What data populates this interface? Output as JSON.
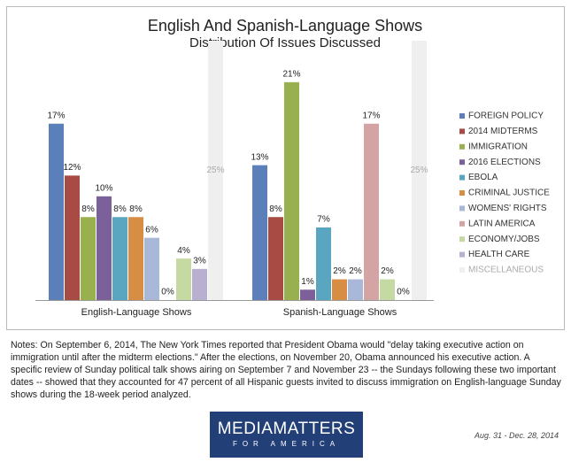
{
  "chart_data": {
    "type": "bar",
    "title": "English And Spanish-Language Shows",
    "subtitle": "Distribution Of Issues Discussed",
    "categories": [
      "English-Language Shows",
      "Spanish-Language Shows"
    ],
    "ylim": [
      0,
      25
    ],
    "series": [
      {
        "name": "FOREIGN POLICY",
        "color": "#5b7fb8",
        "values": [
          17,
          13
        ],
        "value_labels": [
          "17%",
          "13%"
        ]
      },
      {
        "name": "2014 MIDTERMS",
        "color": "#a84b45",
        "values": [
          12,
          8
        ],
        "value_labels": [
          "12%",
          "8%"
        ]
      },
      {
        "name": "IMMIGRATION",
        "color": "#98b04e",
        "values": [
          8,
          21
        ],
        "value_labels": [
          "8%",
          "21%"
        ]
      },
      {
        "name": "2016 ELECTIONS",
        "color": "#7b609a",
        "values": [
          10,
          1
        ],
        "value_labels": [
          "10%",
          "1%"
        ]
      },
      {
        "name": "EBOLA",
        "color": "#5aa5c0",
        "values": [
          8,
          7
        ],
        "value_labels": [
          "8%",
          "7%"
        ]
      },
      {
        "name": "CRIMINAL JUSTICE",
        "color": "#d88d45",
        "values": [
          8,
          2
        ],
        "value_labels": [
          "8%",
          "2%"
        ]
      },
      {
        "name": "WOMENS' RIGHTS",
        "color": "#a9b8d8",
        "values": [
          6,
          2
        ],
        "value_labels": [
          "6%",
          "2%"
        ]
      },
      {
        "name": "LATIN AMERICA",
        "color": "#d4a3a3",
        "values": [
          0,
          17
        ],
        "value_labels": [
          "0%",
          "17%"
        ]
      },
      {
        "name": "ECONOMY/JOBS",
        "color": "#c5d9a3",
        "values": [
          4,
          2
        ],
        "value_labels": [
          "4%",
          "2%"
        ]
      },
      {
        "name": "HEALTH CARE",
        "color": "#b8afd1",
        "values": [
          3,
          0
        ],
        "value_labels": [
          "3%",
          "0%"
        ]
      },
      {
        "name": "MISCELLANEOUS",
        "color": "#efefef",
        "values": [
          25,
          25
        ],
        "value_labels": [
          "25%",
          "25%"
        ]
      }
    ]
  },
  "notes": "Notes: On September 6, 2014, The New York Times reported that President Obama would \"delay taking executive action on immigration until after the midterm elections.\" After the elections, on November 20, Obama announced his executive action. A specific review of Sunday political talk shows airing on September 7 and November 23 -- the Sundays following these two important dates -- showed that they accounted for 47 percent of all Hispanic guests invited to discuss immigration on English-language Sunday shows during the 18-week period analyzed.",
  "date_range": "Aug. 31 - Dec. 28, 2014",
  "logo": {
    "name": "MEDIAMATTERS",
    "tagline": "FOR AMERICA"
  }
}
